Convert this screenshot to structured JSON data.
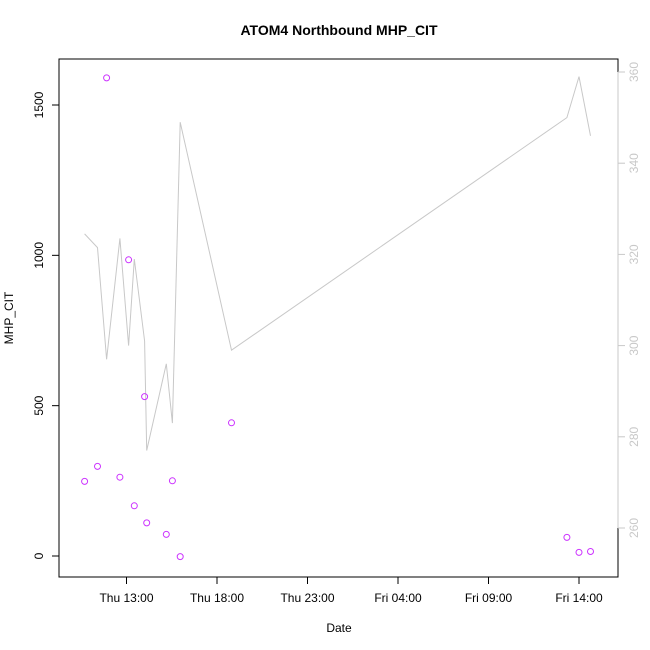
{
  "chart_data": {
    "type": "scatter",
    "title": "ATOM4 Northbound MHP_CIT",
    "xlabel": "Date",
    "ylabel": "MHP_CIT",
    "x_ticks": [
      "Thu 13:00",
      "Thu 18:00",
      "Thu 23:00",
      "Fri 04:00",
      "Fri 09:00",
      "Fri 14:00"
    ],
    "y_ticks": [
      0,
      500,
      1000,
      1500
    ],
    "y2_ticks": [
      260,
      280,
      300,
      320,
      340,
      360
    ],
    "xlim_hours": [
      9.5,
      15.5
    ],
    "ylim": [
      -60,
      1650
    ],
    "y2lim": [
      251.3,
      361.8
    ],
    "colors": {
      "points": "#cc33ff",
      "line": "#c8c8c8",
      "axis": "#000000",
      "y2_axis": "#c8c8c8"
    },
    "series": [
      {
        "type": "scatter",
        "axis": "left",
        "points": [
          {
            "x": "Thu 10:41",
            "y": 248
          },
          {
            "x": "Thu 11:24",
            "y": 298
          },
          {
            "x": "Thu 11:54",
            "y": 1590
          },
          {
            "x": "Thu 12:38",
            "y": 262
          },
          {
            "x": "Thu 13:07",
            "y": 985
          },
          {
            "x": "Thu 13:26",
            "y": 167
          },
          {
            "x": "Thu 14:00",
            "y": 530
          },
          {
            "x": "Thu 14:07",
            "y": 110
          },
          {
            "x": "Thu 15:12",
            "y": 72
          },
          {
            "x": "Thu 15:32",
            "y": 250
          },
          {
            "x": "Thu 15:58",
            "y": -2
          },
          {
            "x": "Thu 18:48",
            "y": 443
          },
          {
            "x": "Fri 13:20",
            "y": 62
          },
          {
            "x": "Fri 14:00",
            "y": 12
          },
          {
            "x": "Fri 14:38",
            "y": 15
          }
        ]
      },
      {
        "type": "line",
        "axis": "right",
        "points": [
          {
            "x": "Thu 10:41",
            "y": 324.5
          },
          {
            "x": "Thu 11:24",
            "y": 321.5
          },
          {
            "x": "Thu 11:54",
            "y": 297
          },
          {
            "x": "Thu 12:38",
            "y": 323.5
          },
          {
            "x": "Thu 13:07",
            "y": 300
          },
          {
            "x": "Thu 13:26",
            "y": 319
          },
          {
            "x": "Thu 14:00",
            "y": 301
          },
          {
            "x": "Thu 14:07",
            "y": 277
          },
          {
            "x": "Thu 15:12",
            "y": 296
          },
          {
            "x": "Thu 15:32",
            "y": 283
          },
          {
            "x": "Thu 15:58",
            "y": 349
          },
          {
            "x": "Thu 18:48",
            "y": 299
          },
          {
            "x": "Fri 13:20",
            "y": 350
          },
          {
            "x": "Fri 14:00",
            "y": 359
          },
          {
            "x": "Fri 14:38",
            "y": 346
          }
        ]
      }
    ]
  }
}
